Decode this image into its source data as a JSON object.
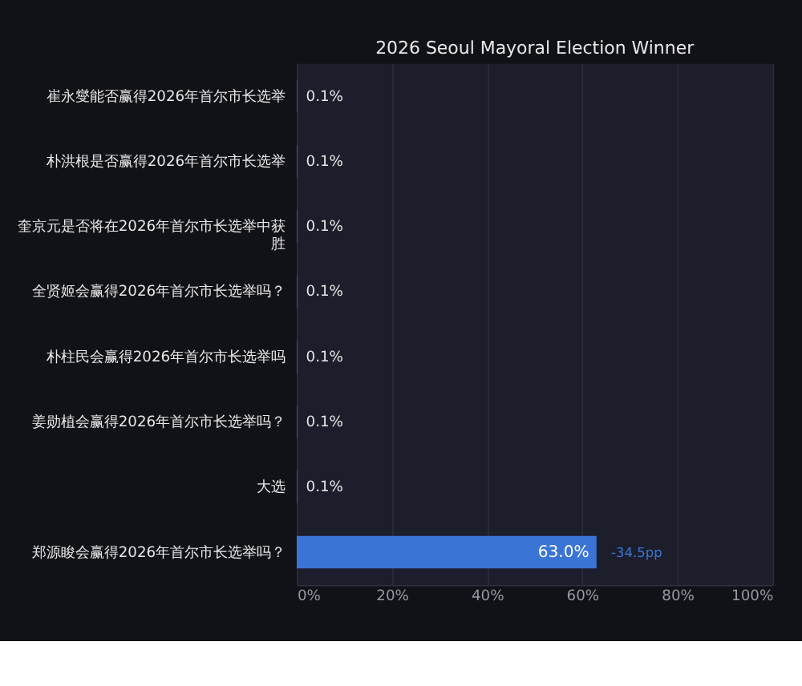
{
  "chart_data": {
    "type": "bar",
    "orientation": "horizontal",
    "title": "2026 Seoul Mayoral Election Winner",
    "categories": [
      "崔永燮能否赢得2026年首尔市长选举",
      "朴洪根是否赢得2026年首尔市长选举",
      "奎京元是否将在2026年首尔市长选举中获胜",
      "全贤姬会赢得2026年首尔市长选举吗？",
      "朴柱民会赢得2026年首尔市长选举吗",
      "姜勋植会赢得2026年首尔市长选举吗？",
      "大选",
      "郑源睃会赢得2026年首尔市长选举吗？"
    ],
    "values": [
      0.1,
      0.1,
      0.1,
      0.1,
      0.1,
      0.1,
      0.1,
      63.0
    ],
    "value_labels": [
      "0.1%",
      "0.1%",
      "0.1%",
      "0.1%",
      "0.1%",
      "0.1%",
      "0.1%",
      "63.0%"
    ],
    "color": "#3a75d6",
    "xlim": [
      0,
      100
    ],
    "xticks": [
      {
        "value": 0,
        "label": "0%"
      },
      {
        "value": 20,
        "label": "20%"
      },
      {
        "value": 40,
        "label": "40%"
      },
      {
        "value": 60,
        "label": "60%"
      },
      {
        "value": 80,
        "label": "80%"
      },
      {
        "value": 100,
        "label": "100%"
      }
    ],
    "grid": "x",
    "annotations": [
      {
        "text": "-34.5pp",
        "x": 63.0,
        "y": "郑源睃会赢得2026年首尔市长选举吗？"
      }
    ]
  }
}
